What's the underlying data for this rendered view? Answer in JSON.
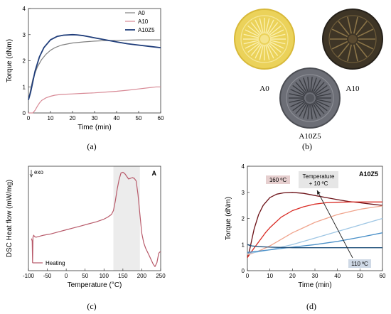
{
  "panels": {
    "a": "(a)",
    "b": "(b)",
    "c": "(c)",
    "d": "(d)"
  },
  "photos": {
    "labels": [
      "A0",
      "A10",
      "A10Z5"
    ],
    "colors": {
      "A0": "#e9cf4e",
      "A10": "#3c3324",
      "A10Z5": "#6a6c73"
    }
  },
  "chart_data": [
    {
      "id": "a",
      "type": "line",
      "xlabel": "Time (min)",
      "ylabel": "Torque (dNm)",
      "xlim": [
        0,
        60
      ],
      "ylim": [
        0,
        4
      ],
      "xticks": [
        0,
        10,
        20,
        30,
        40,
        50,
        60
      ],
      "yticks": [
        0,
        1,
        2,
        3,
        4
      ],
      "legend": "top-right",
      "series": [
        {
          "name": "A0",
          "color": "#808080",
          "x": [
            0,
            1,
            2,
            4,
            6,
            8,
            10,
            12,
            15,
            20,
            25,
            30,
            35,
            40,
            45,
            50,
            55,
            60
          ],
          "y": [
            0.5,
            0.9,
            1.3,
            1.75,
            2.05,
            2.25,
            2.4,
            2.5,
            2.6,
            2.68,
            2.72,
            2.75,
            2.77,
            2.78,
            2.79,
            2.8,
            2.8,
            2.8
          ]
        },
        {
          "name": "A10",
          "color": "#d88a96",
          "x": [
            0,
            2,
            3,
            4,
            5,
            6,
            8,
            10,
            12,
            15,
            20,
            25,
            30,
            35,
            40,
            45,
            50,
            55,
            58,
            60
          ],
          "y": [
            0.0,
            0.0,
            0.1,
            0.25,
            0.38,
            0.48,
            0.58,
            0.64,
            0.68,
            0.71,
            0.73,
            0.75,
            0.77,
            0.8,
            0.83,
            0.87,
            0.92,
            0.97,
            1.0,
            1.0
          ]
        },
        {
          "name": "A10Z5",
          "color": "#1f3d7a",
          "x": [
            0,
            1,
            2,
            3,
            5,
            7,
            10,
            13,
            16,
            20,
            22,
            25,
            30,
            35,
            40,
            45,
            50,
            55,
            60
          ],
          "y": [
            0.5,
            0.8,
            1.2,
            1.6,
            2.15,
            2.5,
            2.8,
            2.93,
            2.98,
            3.0,
            2.99,
            2.96,
            2.88,
            2.8,
            2.72,
            2.65,
            2.6,
            2.55,
            2.5
          ]
        }
      ]
    },
    {
      "id": "c",
      "type": "line",
      "xlabel": "Temperature (°C)",
      "ylabel": "DSC Heat flow (mW/mg)",
      "xlim": [
        -100,
        250
      ],
      "xticks": [
        -100,
        -50,
        0,
        50,
        100,
        150,
        200,
        250
      ],
      "corner_label": "A",
      "exo_label": "exo",
      "shaded_region": [
        125,
        195
      ],
      "legend": "bottom-left",
      "series": [
        {
          "name": "Heating",
          "color": "#b85a6a",
          "x": [
            -92,
            -90,
            -89,
            -88,
            -86,
            -84,
            -80,
            -60,
            -40,
            -20,
            0,
            20,
            40,
            60,
            80,
            100,
            110,
            120,
            125,
            130,
            135,
            140,
            145,
            150,
            155,
            160,
            165,
            170,
            175,
            180,
            185,
            190,
            195,
            200,
            205,
            210,
            215,
            220,
            225,
            230,
            235,
            240,
            245,
            248,
            250
          ],
          "y": [
            0.2,
            0.0,
            -1.6,
            0.3,
            0.45,
            0.35,
            0.3,
            0.45,
            0.55,
            0.7,
            0.85,
            1.0,
            1.15,
            1.3,
            1.45,
            1.65,
            1.8,
            2.0,
            2.3,
            3.0,
            3.9,
            4.6,
            5.1,
            5.15,
            5.05,
            4.85,
            4.65,
            4.7,
            4.75,
            4.7,
            4.5,
            3.5,
            2.0,
            0.6,
            -0.1,
            -0.5,
            -0.8,
            -1.1,
            -1.4,
            -1.7,
            -1.9,
            -1.6,
            -0.9,
            -0.8,
            -0.8
          ]
        }
      ]
    },
    {
      "id": "d",
      "type": "line",
      "xlabel": "Time (min)",
      "ylabel": "Torque (dNm)",
      "xlim": [
        0,
        60
      ],
      "ylim": [
        0,
        4
      ],
      "xticks": [
        0,
        10,
        20,
        30,
        40,
        50,
        60
      ],
      "yticks": [
        0,
        1,
        2,
        3,
        4
      ],
      "corner_label": "A10Z5",
      "annotations": {
        "high": "160 ºC",
        "step": "Temperature\n+ 10 ºC",
        "low": "110 ºC"
      },
      "series": [
        {
          "color": "#6b1016",
          "x": [
            0,
            1,
            2,
            3,
            5,
            7,
            10,
            13,
            16,
            20,
            25,
            30,
            35,
            40,
            45,
            50,
            55,
            60
          ],
          "y": [
            0.5,
            0.8,
            1.2,
            1.6,
            2.15,
            2.5,
            2.8,
            2.93,
            2.98,
            3.0,
            2.96,
            2.88,
            2.8,
            2.72,
            2.65,
            2.6,
            2.55,
            2.5
          ]
        },
        {
          "color": "#d92b24",
          "x": [
            0,
            2,
            5,
            8,
            10,
            15,
            20,
            25,
            30,
            35,
            40,
            45,
            50,
            55,
            60
          ],
          "y": [
            0.5,
            0.75,
            1.1,
            1.45,
            1.65,
            2.05,
            2.3,
            2.45,
            2.55,
            2.6,
            2.62,
            2.63,
            2.63,
            2.63,
            2.63
          ]
        },
        {
          "color": "#f0a58e",
          "x": [
            0,
            5,
            10,
            15,
            20,
            25,
            30,
            35,
            40,
            45,
            50,
            55,
            60
          ],
          "y": [
            0.6,
            0.75,
            0.95,
            1.2,
            1.45,
            1.65,
            1.85,
            2.0,
            2.15,
            2.25,
            2.35,
            2.42,
            2.48
          ]
        },
        {
          "color": "#9ec6e4",
          "x": [
            0,
            10,
            20,
            30,
            40,
            50,
            60
          ],
          "y": [
            0.65,
            0.8,
            1.0,
            1.25,
            1.5,
            1.75,
            2.0
          ]
        },
        {
          "color": "#4a90c8",
          "x": [
            0,
            10,
            20,
            30,
            40,
            50,
            60
          ],
          "y": [
            0.7,
            0.8,
            0.9,
            1.0,
            1.12,
            1.28,
            1.45
          ]
        },
        {
          "color": "#1f4f7a",
          "x": [
            0,
            1,
            2,
            5,
            10,
            20,
            30,
            40,
            50,
            60
          ],
          "y": [
            1.0,
            0.97,
            0.95,
            0.92,
            0.9,
            0.88,
            0.88,
            0.88,
            0.88,
            0.88
          ]
        }
      ]
    }
  ]
}
